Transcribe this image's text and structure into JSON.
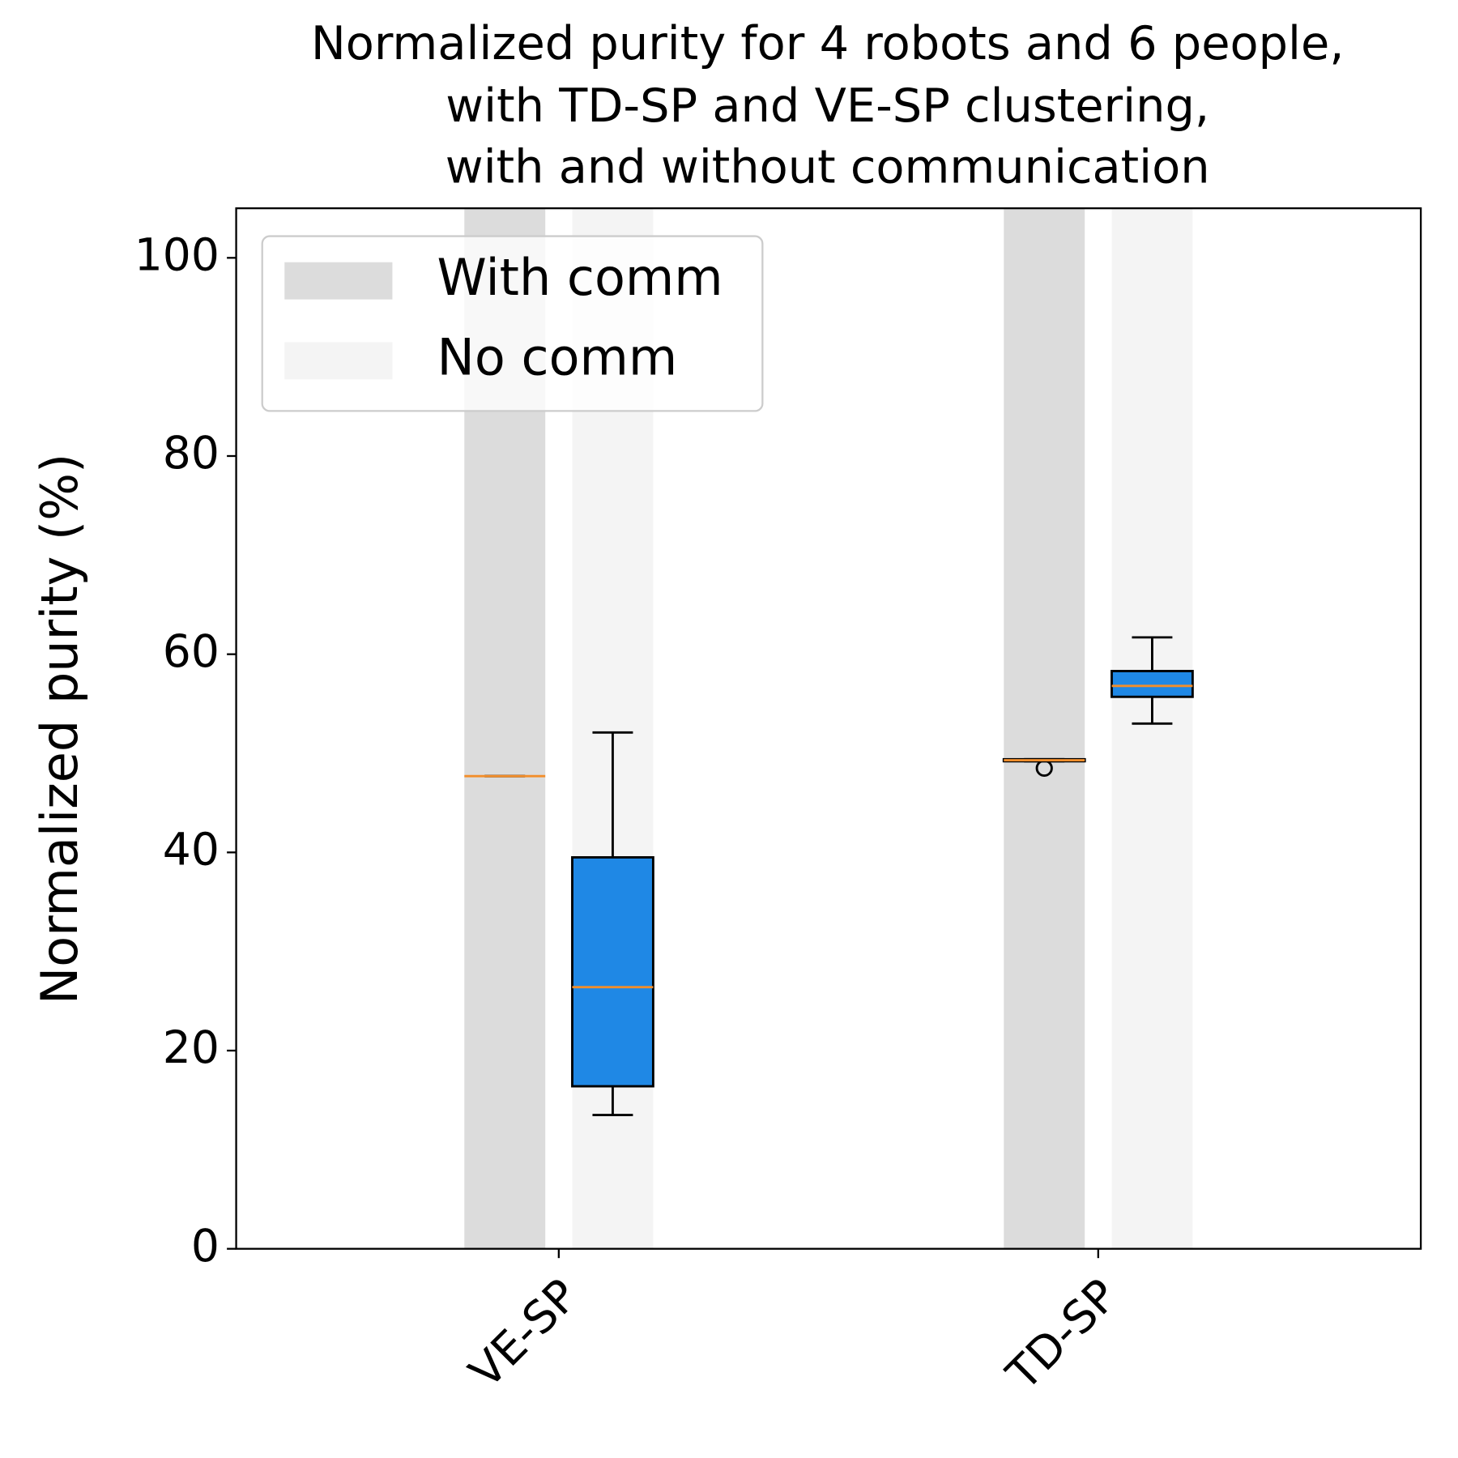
{
  "chart_data": {
    "type": "boxplot",
    "title": [
      "Normalized purity for 4 robots and 6 people,",
      "with TD-SP and VE-SP clustering,",
      "with and without communication"
    ],
    "y_label": "Normalized purity (%)",
    "categories": [
      "VE-SP",
      "TD-SP"
    ],
    "box_color": "#1f88e5",
    "median_color": "#f28e2b",
    "ylim": [
      0,
      105
    ],
    "yticks": [
      0,
      20,
      40,
      60,
      80,
      100
    ],
    "legend": "upper left",
    "series": [
      {
        "name": "With comm",
        "color": "#dcdcdc",
        "boxes": [
          {
            "min": 47.7,
            "q1": 47.7,
            "median": 47.7,
            "q3": 47.7,
            "max": 47.7,
            "outliers": []
          },
          {
            "min": 49.2,
            "q1": 49.2,
            "median": 49.3,
            "q3": 49.4,
            "max": 49.4,
            "outliers": [
              48.5
            ]
          }
        ]
      },
      {
        "name": "No comm",
        "color": "#f4f4f4",
        "boxes": [
          {
            "min": 13.5,
            "q1": 16.4,
            "median": 26.4,
            "q3": 39.5,
            "max": 52.1,
            "outliers": []
          },
          {
            "min": 53.0,
            "q1": 55.7,
            "median": 56.8,
            "q3": 58.3,
            "max": 61.7,
            "outliers": []
          }
        ]
      }
    ]
  }
}
